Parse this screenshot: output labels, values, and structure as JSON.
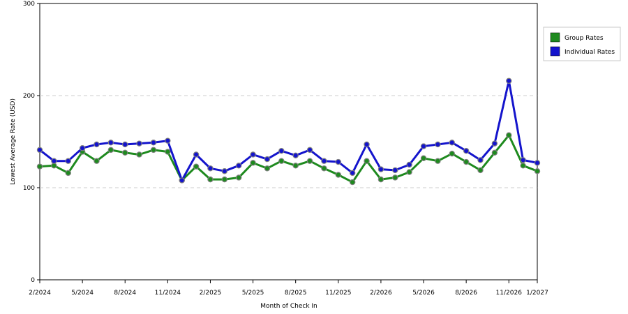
{
  "chart_data": {
    "type": "line",
    "xlabel": "Month of Check In",
    "ylabel": "Lowest Average Rate (USD)",
    "ylim": [
      0,
      300
    ],
    "yticks": [
      0,
      100,
      200,
      300
    ],
    "xticks": [
      "2/2024",
      "5/2024",
      "8/2024",
      "11/2024",
      "2/2025",
      "5/2025",
      "8/2025",
      "11/2025",
      "2/2026",
      "5/2026",
      "8/2026",
      "11/2026",
      "1/2027"
    ],
    "x": [
      "2/2024",
      "3/2024",
      "4/2024",
      "5/2024",
      "6/2024",
      "7/2024",
      "8/2024",
      "9/2024",
      "10/2024",
      "11/2024",
      "12/2024",
      "1/2025",
      "2/2025",
      "3/2025",
      "4/2025",
      "5/2025",
      "6/2025",
      "7/2025",
      "8/2025",
      "9/2025",
      "10/2025",
      "11/2025",
      "12/2025",
      "1/2026",
      "2/2026",
      "3/2026",
      "4/2026",
      "5/2026",
      "6/2026",
      "7/2026",
      "8/2026",
      "9/2026",
      "10/2026",
      "11/2026",
      "12/2026",
      "1/2027"
    ],
    "grid": true,
    "legend_position": "right",
    "series": [
      {
        "name": "Group Rates",
        "color": "#1e8a1e",
        "values": [
          123,
          124,
          116,
          139,
          129,
          141,
          138,
          136,
          141,
          139,
          108,
          123,
          109,
          109,
          111,
          127,
          121,
          129,
          124,
          129,
          121,
          114,
          106,
          129,
          109,
          111,
          117,
          132,
          129,
          137,
          128,
          119,
          138,
          157,
          124,
          118
        ]
      },
      {
        "name": "Individual Rates",
        "color": "#1414cc",
        "values": [
          141,
          129,
          129,
          143,
          147,
          149,
          147,
          148,
          149,
          151,
          108,
          136,
          121,
          118,
          124,
          136,
          131,
          140,
          135,
          141,
          129,
          128,
          116,
          147,
          120,
          119,
          125,
          145,
          147,
          149,
          140,
          130,
          148,
          216,
          130,
          127
        ]
      }
    ]
  }
}
